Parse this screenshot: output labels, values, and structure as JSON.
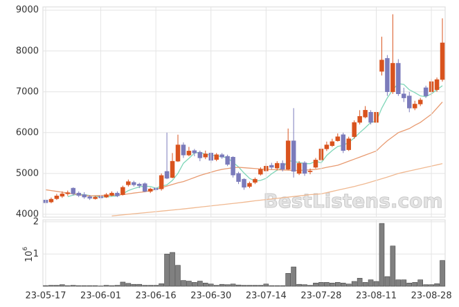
{
  "chart_data": [
    {
      "type": "candlestick",
      "open": [
        4350,
        4300,
        4380,
        4440,
        4500,
        4640,
        4520,
        4480,
        4430,
        4380,
        4440,
        4420,
        4460,
        4520,
        4480,
        4720,
        4780,
        4740,
        4750,
        4560,
        4640,
        4620,
        5050,
        4900,
        5300,
        5700,
        5450,
        5560,
        5520,
        5400,
        5500,
        5340,
        5460,
        5420,
        5400,
        5000,
        4860,
        4680,
        4780,
        4980,
        5060,
        5200,
        5130,
        5250,
        5100,
        5800,
        5000,
        5260,
        5040,
        5150,
        5330,
        5600,
        5680,
        5800,
        5950,
        5580,
        5900,
        6250,
        6380,
        6500,
        6250,
        7500,
        7820,
        7000,
        7700,
        6950,
        6900,
        6600,
        6700,
        7100,
        7000,
        7050,
        7300
      ],
      "high": [
        4400,
        4410,
        4500,
        4560,
        4580,
        4660,
        4560,
        4540,
        4470,
        4450,
        4470,
        4520,
        4560,
        4560,
        4700,
        4850,
        4820,
        4770,
        4780,
        4650,
        4660,
        5000,
        6000,
        5500,
        5950,
        5760,
        5650,
        5600,
        5560,
        5560,
        5520,
        5500,
        5500,
        5460,
        5420,
        5040,
        4880,
        4800,
        4900,
        5150,
        5250,
        5260,
        5300,
        5320,
        6100,
        6600,
        5300,
        5300,
        5120,
        5380,
        5650,
        5780,
        5850,
        5980,
        6000,
        5900,
        6300,
        6550,
        6650,
        6550,
        6600,
        8350,
        7900,
        8900,
        7800,
        7100,
        7000,
        6780,
        6850,
        7150,
        7320,
        7350,
        8800
      ],
      "low": [
        4220,
        4270,
        4350,
        4400,
        4450,
        4460,
        4420,
        4380,
        4350,
        4360,
        4360,
        4400,
        4440,
        4420,
        4460,
        4680,
        4680,
        4640,
        4540,
        4520,
        4560,
        4580,
        4860,
        4880,
        5280,
        5380,
        5420,
        5420,
        5300,
        5350,
        5250,
        5300,
        5360,
        5180,
        4900,
        4740,
        4600,
        4640,
        4740,
        4950,
        5040,
        5100,
        5080,
        5050,
        5080,
        4900,
        4960,
        4940,
        4980,
        5120,
        5300,
        5550,
        5650,
        5780,
        5500,
        5550,
        5850,
        6200,
        6350,
        6200,
        6230,
        7400,
        6900,
        6950,
        6900,
        6750,
        6500,
        6550,
        6650,
        6850,
        6900,
        7000,
        7250
      ],
      "close": [
        4280,
        4370,
        4450,
        4500,
        4530,
        4500,
        4460,
        4420,
        4390,
        4420,
        4400,
        4480,
        4520,
        4450,
        4660,
        4800,
        4720,
        4700,
        4560,
        4620,
        4600,
        4950,
        4880,
        5300,
        5700,
        5450,
        5550,
        5500,
        5380,
        5480,
        5320,
        5460,
        5400,
        5220,
        4960,
        4800,
        4660,
        4760,
        4860,
        5100,
        5180,
        5150,
        5250,
        5100,
        5800,
        5050,
        5250,
        5000,
        5060,
        5330,
        5600,
        5700,
        5780,
        5900,
        5560,
        5850,
        6250,
        6400,
        6550,
        6250,
        6500,
        7780,
        7000,
        7700,
        6950,
        6850,
        6600,
        6700,
        6800,
        6900,
        7250,
        7300,
        8200
      ],
      "up_color": "#d9531e",
      "down_color": "#7b7bbb",
      "series": [
        {
          "color": "#7fd6b8",
          "values": [
            null,
            null,
            null,
            null,
            4430,
            4470,
            4490,
            4480,
            4460,
            4440,
            4430,
            4420,
            4440,
            4450,
            4500,
            4580,
            4630,
            4670,
            4690,
            4680,
            4640,
            4690,
            4720,
            4830,
            5000,
            5250,
            5370,
            5500,
            5520,
            5470,
            5450,
            5430,
            5410,
            5380,
            5270,
            5160,
            5010,
            4880,
            4810,
            4830,
            4880,
            4990,
            5080,
            5130,
            5320,
            5290,
            5270,
            5240,
            5240,
            5300,
            5260,
            5440,
            5560,
            5660,
            5690,
            5760,
            5870,
            6000,
            6120,
            6250,
            6280,
            6600,
            6850,
            7050,
            7200,
            7180,
            7050,
            6980,
            6900,
            6880,
            6950,
            7050,
            7150
          ]
        },
        {
          "color": "#e89a70",
          "values": [
            4600,
            4580,
            4560,
            4540,
            4520,
            4500,
            4480,
            4460,
            4450,
            4455,
            4460,
            4465,
            4470,
            4475,
            4480,
            4500,
            4520,
            4535,
            4550,
            4580,
            4610,
            4650,
            4690,
            4730,
            4770,
            4800,
            4850,
            4900,
            4950,
            4990,
            5030,
            5070,
            5100,
            5120,
            5140,
            5150,
            5140,
            5130,
            5120,
            5110,
            5100,
            5095,
            5090,
            5085,
            5080,
            5070,
            5075,
            5080,
            5090,
            5100,
            5120,
            5150,
            5175,
            5200,
            5250,
            5300,
            5350,
            5400,
            5450,
            5500,
            5550,
            5680,
            5800,
            5900,
            6000,
            6050,
            6100,
            6180,
            6250,
            6350,
            6450,
            6600,
            6750
          ]
        },
        {
          "color": "#f0b890",
          "values": [
            null,
            null,
            null,
            null,
            null,
            null,
            null,
            null,
            null,
            null,
            null,
            null,
            3960,
            3973,
            3986,
            3999,
            4012,
            4025,
            4038,
            4051,
            4064,
            4077,
            4090,
            4103,
            4116,
            4130,
            4145,
            4160,
            4175,
            4190,
            4205,
            4220,
            4235,
            4250,
            4265,
            4280,
            4295,
            4312,
            4330,
            4345,
            4360,
            4375,
            4390,
            4405,
            4420,
            4435,
            4450,
            4465,
            4480,
            4490,
            4500,
            4530,
            4560,
            4590,
            4620,
            4650,
            4680,
            4715,
            4750,
            4790,
            4830,
            4870,
            4910,
            4955,
            5000,
            5030,
            5060,
            5090,
            5120,
            5150,
            5180,
            5210,
            5240
          ]
        }
      ],
      "ylim": [
        3930,
        9080
      ],
      "yticks": [
        4000,
        5000,
        6000,
        7000,
        8000,
        9000
      ],
      "grid": true,
      "watermark": "BestListens.com"
    },
    {
      "type": "bar",
      "categories": [
        "23-05-17",
        null,
        null,
        null,
        null,
        null,
        null,
        null,
        null,
        null,
        "23-06-01",
        null,
        null,
        null,
        null,
        null,
        null,
        null,
        null,
        null,
        "23-06-16",
        null,
        null,
        null,
        null,
        null,
        null,
        null,
        null,
        null,
        "23-06-30",
        null,
        null,
        null,
        null,
        null,
        null,
        null,
        null,
        null,
        "23-07-14",
        null,
        null,
        null,
        null,
        null,
        null,
        null,
        null,
        null,
        "23-07-28",
        null,
        null,
        null,
        null,
        null,
        null,
        null,
        null,
        null,
        "23-08-11",
        null,
        null,
        null,
        null,
        null,
        null,
        null,
        null,
        null,
        "23-08-28",
        null,
        null
      ],
      "values": [
        0.02,
        0.03,
        0.03,
        0.05,
        0.02,
        0.03,
        0.02,
        0.02,
        0.02,
        0.02,
        0.01,
        0.03,
        0.02,
        0.03,
        0.13,
        0.09,
        0.06,
        0.06,
        0.03,
        0.03,
        0.03,
        0.08,
        1.0,
        1.05,
        0.65,
        0.18,
        0.16,
        0.12,
        0.16,
        0.1,
        0.07,
        0.03,
        0.06,
        0.05,
        0.07,
        0.04,
        0.03,
        0.03,
        0.03,
        0.03,
        0.07,
        0.02,
        0.02,
        0.02,
        0.4,
        0.6,
        0.06,
        0.05,
        0.03,
        0.1,
        0.12,
        0.12,
        0.1,
        0.12,
        0.1,
        0.07,
        0.15,
        0.25,
        0.12,
        0.2,
        0.15,
        1.95,
        0.3,
        1.25,
        0.2,
        0.2,
        0.1,
        0.12,
        0.2,
        0.05,
        0.05,
        0.08,
        0.8
      ],
      "color": "#808080",
      "ylim": [
        0,
        2.06
      ],
      "yticks": [
        1,
        2
      ],
      "grid": true,
      "y_label_base": "10",
      "y_label_exponent": "6"
    }
  ]
}
